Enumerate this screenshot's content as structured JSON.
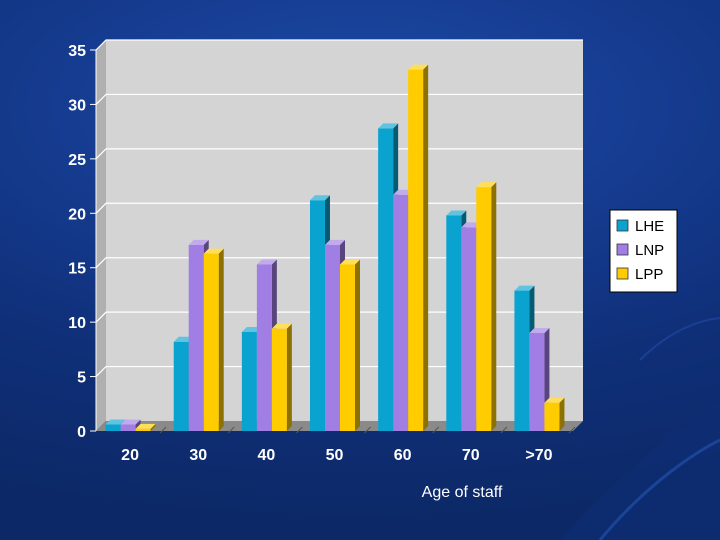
{
  "chart_data": {
    "type": "bar",
    "title": "",
    "xlabel": "Age of staff",
    "ylabel": "",
    "categories": [
      "20",
      "30",
      "40",
      "50",
      "60",
      "70",
      ">70"
    ],
    "series": [
      {
        "name": "LHE",
        "color": "#0aa3cf",
        "values": [
          0.6,
          8.2,
          9.1,
          21.2,
          27.8,
          19.8,
          12.9
        ]
      },
      {
        "name": "LNP",
        "color": "#a07ee4",
        "values": [
          0.6,
          17.1,
          15.3,
          17.1,
          21.7,
          18.7,
          9.0
        ]
      },
      {
        "name": "LPP",
        "color": "#ffcc00",
        "values": [
          0.2,
          16.3,
          9.4,
          15.3,
          33.2,
          22.4,
          2.6
        ]
      }
    ],
    "ylim": [
      0,
      35
    ],
    "yticks": [
      0,
      5,
      10,
      15,
      20,
      25,
      30,
      35
    ],
    "grid": true,
    "legend_position": "right"
  }
}
